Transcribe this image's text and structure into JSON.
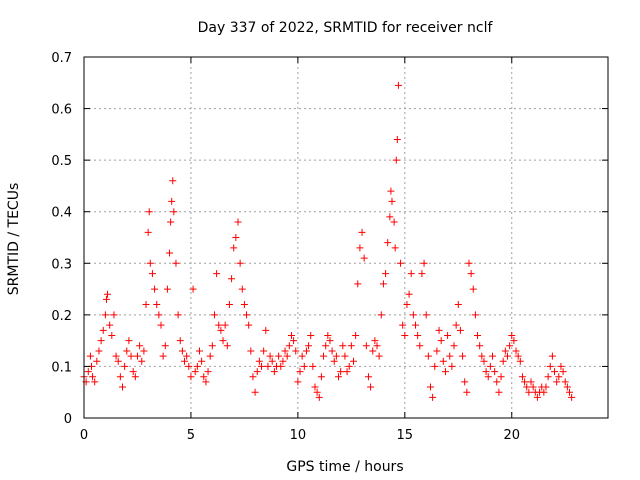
{
  "chart_data": {
    "type": "scatter",
    "title": "Day 337 of 2022, SRMTID for receiver nclf",
    "xlabel": "GPS time / hours",
    "ylabel": "SRMTID / TECUs",
    "xlim": [
      0,
      24.5
    ],
    "ylim": [
      0,
      0.7
    ],
    "x_ticks": [
      0,
      5,
      10,
      15,
      20
    ],
    "x_tick_labels": [
      "0",
      "5",
      "10",
      "15",
      "20"
    ],
    "y_ticks": [
      0,
      0.1,
      0.2,
      0.3,
      0.4,
      0.5,
      0.6,
      0.7
    ],
    "y_tick_labels": [
      "0",
      "0.1",
      "0.2",
      "0.3",
      "0.4",
      "0.5",
      "0.6",
      "0.7"
    ],
    "grid": true,
    "marker": "+",
    "color": "#ff0000",
    "series": [
      {
        "name": "SRMTID",
        "points": [
          [
            0.0,
            0.08
          ],
          [
            0.1,
            0.07
          ],
          [
            0.2,
            0.09
          ],
          [
            0.3,
            0.12
          ],
          [
            0.35,
            0.1
          ],
          [
            0.4,
            0.08
          ],
          [
            0.5,
            0.07
          ],
          [
            0.6,
            0.11
          ],
          [
            0.7,
            0.13
          ],
          [
            0.8,
            0.15
          ],
          [
            0.9,
            0.17
          ],
          [
            1.0,
            0.2
          ],
          [
            1.05,
            0.23
          ],
          [
            1.1,
            0.24
          ],
          [
            1.2,
            0.18
          ],
          [
            1.3,
            0.16
          ],
          [
            1.4,
            0.2
          ],
          [
            1.5,
            0.12
          ],
          [
            1.6,
            0.11
          ],
          [
            1.7,
            0.08
          ],
          [
            1.8,
            0.06
          ],
          [
            1.9,
            0.1
          ],
          [
            2.0,
            0.13
          ],
          [
            2.1,
            0.15
          ],
          [
            2.2,
            0.12
          ],
          [
            2.3,
            0.09
          ],
          [
            2.4,
            0.08
          ],
          [
            2.5,
            0.12
          ],
          [
            2.6,
            0.14
          ],
          [
            2.7,
            0.11
          ],
          [
            2.8,
            0.13
          ],
          [
            2.9,
            0.22
          ],
          [
            3.0,
            0.36
          ],
          [
            3.05,
            0.4
          ],
          [
            3.1,
            0.3
          ],
          [
            3.2,
            0.28
          ],
          [
            3.3,
            0.25
          ],
          [
            3.4,
            0.22
          ],
          [
            3.5,
            0.2
          ],
          [
            3.6,
            0.18
          ],
          [
            3.7,
            0.12
          ],
          [
            3.8,
            0.14
          ],
          [
            3.9,
            0.25
          ],
          [
            4.0,
            0.32
          ],
          [
            4.05,
            0.38
          ],
          [
            4.1,
            0.42
          ],
          [
            4.15,
            0.46
          ],
          [
            4.2,
            0.4
          ],
          [
            4.3,
            0.3
          ],
          [
            4.4,
            0.2
          ],
          [
            4.5,
            0.15
          ],
          [
            4.6,
            0.13
          ],
          [
            4.7,
            0.11
          ],
          [
            4.8,
            0.12
          ],
          [
            4.9,
            0.1
          ],
          [
            5.0,
            0.08
          ],
          [
            5.1,
            0.25
          ],
          [
            5.2,
            0.09
          ],
          [
            5.3,
            0.1
          ],
          [
            5.4,
            0.13
          ],
          [
            5.5,
            0.11
          ],
          [
            5.6,
            0.08
          ],
          [
            5.7,
            0.07
          ],
          [
            5.8,
            0.09
          ],
          [
            5.9,
            0.12
          ],
          [
            6.0,
            0.14
          ],
          [
            6.1,
            0.2
          ],
          [
            6.2,
            0.28
          ],
          [
            6.3,
            0.18
          ],
          [
            6.4,
            0.17
          ],
          [
            6.5,
            0.15
          ],
          [
            6.6,
            0.18
          ],
          [
            6.7,
            0.14
          ],
          [
            6.8,
            0.22
          ],
          [
            6.9,
            0.27
          ],
          [
            7.0,
            0.33
          ],
          [
            7.1,
            0.35
          ],
          [
            7.2,
            0.38
          ],
          [
            7.3,
            0.3
          ],
          [
            7.4,
            0.25
          ],
          [
            7.5,
            0.22
          ],
          [
            7.6,
            0.2
          ],
          [
            7.7,
            0.18
          ],
          [
            7.8,
            0.13
          ],
          [
            7.9,
            0.08
          ],
          [
            8.0,
            0.05
          ],
          [
            8.1,
            0.09
          ],
          [
            8.2,
            0.11
          ],
          [
            8.3,
            0.1
          ],
          [
            8.4,
            0.13
          ],
          [
            8.5,
            0.17
          ],
          [
            8.6,
            0.1
          ],
          [
            8.7,
            0.12
          ],
          [
            8.8,
            0.11
          ],
          [
            8.9,
            0.09
          ],
          [
            9.0,
            0.1
          ],
          [
            9.1,
            0.12
          ],
          [
            9.2,
            0.1
          ],
          [
            9.3,
            0.11
          ],
          [
            9.4,
            0.13
          ],
          [
            9.5,
            0.12
          ],
          [
            9.6,
            0.14
          ],
          [
            9.7,
            0.16
          ],
          [
            9.8,
            0.15
          ],
          [
            9.9,
            0.13
          ],
          [
            10.0,
            0.07
          ],
          [
            10.1,
            0.09
          ],
          [
            10.2,
            0.12
          ],
          [
            10.3,
            0.1
          ],
          [
            10.4,
            0.13
          ],
          [
            10.5,
            0.14
          ],
          [
            10.6,
            0.16
          ],
          [
            10.7,
            0.1
          ],
          [
            10.8,
            0.06
          ],
          [
            10.9,
            0.05
          ],
          [
            11.0,
            0.04
          ],
          [
            11.1,
            0.08
          ],
          [
            11.2,
            0.12
          ],
          [
            11.3,
            0.14
          ],
          [
            11.4,
            0.16
          ],
          [
            11.5,
            0.15
          ],
          [
            11.6,
            0.13
          ],
          [
            11.7,
            0.11
          ],
          [
            11.8,
            0.12
          ],
          [
            11.9,
            0.08
          ],
          [
            12.0,
            0.09
          ],
          [
            12.1,
            0.14
          ],
          [
            12.2,
            0.12
          ],
          [
            12.3,
            0.09
          ],
          [
            12.4,
            0.1
          ],
          [
            12.5,
            0.14
          ],
          [
            12.6,
            0.11
          ],
          [
            12.7,
            0.16
          ],
          [
            12.8,
            0.26
          ],
          [
            12.9,
            0.33
          ],
          [
            13.0,
            0.36
          ],
          [
            13.1,
            0.31
          ],
          [
            13.2,
            0.14
          ],
          [
            13.3,
            0.08
          ],
          [
            13.4,
            0.06
          ],
          [
            13.5,
            0.13
          ],
          [
            13.6,
            0.15
          ],
          [
            13.7,
            0.14
          ],
          [
            13.8,
            0.12
          ],
          [
            13.9,
            0.2
          ],
          [
            14.0,
            0.26
          ],
          [
            14.1,
            0.28
          ],
          [
            14.2,
            0.34
          ],
          [
            14.3,
            0.39
          ],
          [
            14.35,
            0.44
          ],
          [
            14.4,
            0.42
          ],
          [
            14.5,
            0.38
          ],
          [
            14.55,
            0.33
          ],
          [
            14.6,
            0.5
          ],
          [
            14.65,
            0.54
          ],
          [
            14.7,
            0.645
          ],
          [
            14.8,
            0.3
          ],
          [
            14.9,
            0.18
          ],
          [
            15.0,
            0.16
          ],
          [
            15.1,
            0.22
          ],
          [
            15.2,
            0.24
          ],
          [
            15.3,
            0.28
          ],
          [
            15.4,
            0.2
          ],
          [
            15.5,
            0.18
          ],
          [
            15.6,
            0.16
          ],
          [
            15.7,
            0.14
          ],
          [
            15.8,
            0.28
          ],
          [
            15.9,
            0.3
          ],
          [
            16.0,
            0.2
          ],
          [
            16.1,
            0.12
          ],
          [
            16.2,
            0.06
          ],
          [
            16.3,
            0.04
          ],
          [
            16.4,
            0.1
          ],
          [
            16.5,
            0.13
          ],
          [
            16.6,
            0.17
          ],
          [
            16.7,
            0.15
          ],
          [
            16.8,
            0.11
          ],
          [
            16.9,
            0.09
          ],
          [
            17.0,
            0.16
          ],
          [
            17.1,
            0.12
          ],
          [
            17.2,
            0.1
          ],
          [
            17.3,
            0.14
          ],
          [
            17.4,
            0.18
          ],
          [
            17.5,
            0.22
          ],
          [
            17.6,
            0.17
          ],
          [
            17.7,
            0.12
          ],
          [
            17.8,
            0.07
          ],
          [
            17.9,
            0.05
          ],
          [
            18.0,
            0.3
          ],
          [
            18.1,
            0.28
          ],
          [
            18.2,
            0.25
          ],
          [
            18.3,
            0.2
          ],
          [
            18.4,
            0.16
          ],
          [
            18.5,
            0.14
          ],
          [
            18.6,
            0.12
          ],
          [
            18.7,
            0.11
          ],
          [
            18.8,
            0.09
          ],
          [
            18.9,
            0.08
          ],
          [
            19.0,
            0.1
          ],
          [
            19.1,
            0.12
          ],
          [
            19.2,
            0.09
          ],
          [
            19.3,
            0.07
          ],
          [
            19.4,
            0.05
          ],
          [
            19.5,
            0.08
          ],
          [
            19.6,
            0.11
          ],
          [
            19.7,
            0.13
          ],
          [
            19.8,
            0.12
          ],
          [
            19.9,
            0.14
          ],
          [
            20.0,
            0.16
          ],
          [
            20.1,
            0.15
          ],
          [
            20.2,
            0.13
          ],
          [
            20.3,
            0.12
          ],
          [
            20.4,
            0.11
          ],
          [
            20.5,
            0.08
          ],
          [
            20.6,
            0.07
          ],
          [
            20.7,
            0.06
          ],
          [
            20.8,
            0.05
          ],
          [
            20.9,
            0.07
          ],
          [
            21.0,
            0.06
          ],
          [
            21.1,
            0.05
          ],
          [
            21.2,
            0.04
          ],
          [
            21.3,
            0.05
          ],
          [
            21.4,
            0.06
          ],
          [
            21.5,
            0.05
          ],
          [
            21.6,
            0.06
          ],
          [
            21.7,
            0.08
          ],
          [
            21.8,
            0.1
          ],
          [
            21.9,
            0.12
          ],
          [
            22.0,
            0.09
          ],
          [
            22.1,
            0.07
          ],
          [
            22.2,
            0.08
          ],
          [
            22.3,
            0.1
          ],
          [
            22.4,
            0.09
          ],
          [
            22.5,
            0.07
          ],
          [
            22.6,
            0.06
          ],
          [
            22.7,
            0.05
          ],
          [
            22.8,
            0.04
          ]
        ]
      }
    ]
  }
}
